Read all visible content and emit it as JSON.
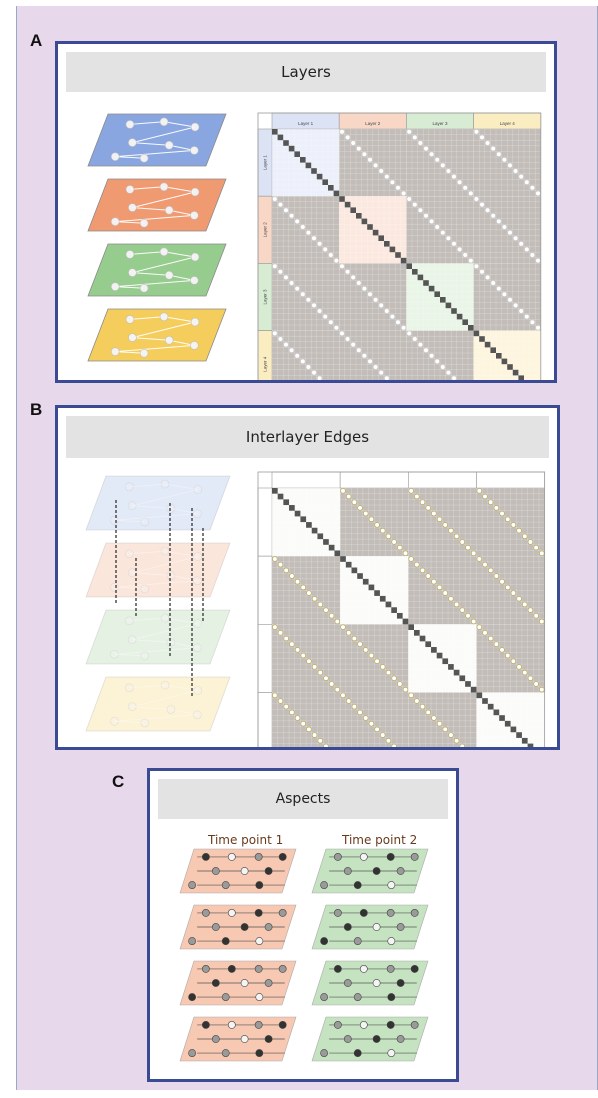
{
  "panels": {
    "a": {
      "letter": "A",
      "title": "Layers",
      "layer_labels": [
        "Layer 1",
        "Layer 2",
        "Layer 3",
        "Layer 4"
      ]
    },
    "b": {
      "letter": "B",
      "title": "Interlayer Edges"
    },
    "c": {
      "letter": "C",
      "title": "Aspects",
      "time_points": [
        "Time point 1",
        "Time point 2"
      ]
    }
  },
  "colors": {
    "layer_fills": [
      "#8aa6e0",
      "#f09a72",
      "#96cc8e",
      "#f5cd5c"
    ],
    "header_fills": [
      "#dce3f5",
      "#f8d7c6",
      "#d7ecd3",
      "#fbedc2"
    ],
    "panel_border": "#3a4b94",
    "background": "#e8d8ec"
  }
}
